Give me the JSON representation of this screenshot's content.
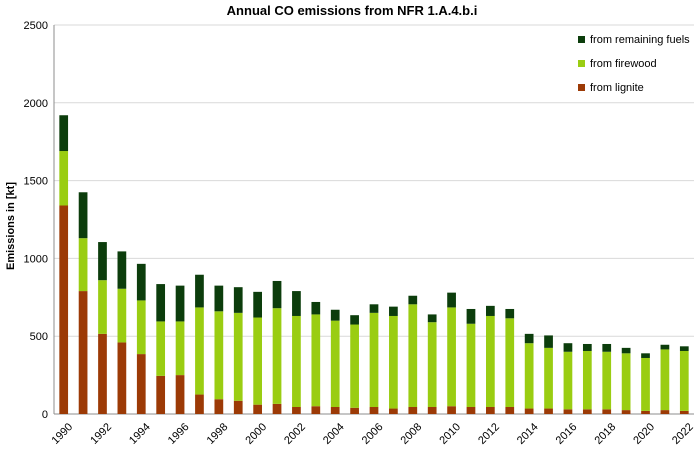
{
  "chart_data": {
    "type": "bar",
    "stacked": true,
    "title": "Annual CO emissions from NFR 1.A.4.b.i",
    "xlabel": "",
    "ylabel": "Emissions in [kt]",
    "ylim": [
      0,
      2500
    ],
    "yticks": [
      0,
      500,
      1000,
      1500,
      2000,
      2500
    ],
    "grid": true,
    "legend_position": "top-right",
    "categories": [
      "1990",
      "1991",
      "1992",
      "1993",
      "1994",
      "1995",
      "1996",
      "1997",
      "1998",
      "1999",
      "2000",
      "2001",
      "2002",
      "2003",
      "2004",
      "2005",
      "2006",
      "2007",
      "2008",
      "2009",
      "2010",
      "2011",
      "2012",
      "2013",
      "2014",
      "2015",
      "2016",
      "2017",
      "2018",
      "2019",
      "2020",
      "2021",
      "2022"
    ],
    "x_tick_labels": [
      "1990",
      "1992",
      "1994",
      "1996",
      "1998",
      "2000",
      "2002",
      "2004",
      "2006",
      "2008",
      "2010",
      "2012",
      "2014",
      "2016",
      "2018",
      "2020",
      "2022"
    ],
    "series": [
      {
        "name": "from lignite",
        "color": "#9c3a06",
        "values": [
          1340,
          790,
          515,
          460,
          385,
          245,
          250,
          125,
          95,
          85,
          60,
          65,
          45,
          50,
          45,
          40,
          45,
          35,
          45,
          45,
          50,
          45,
          45,
          45,
          35,
          35,
          30,
          30,
          30,
          25,
          20,
          25,
          20
        ]
      },
      {
        "name": "from firewood",
        "color": "#9acd12",
        "values": [
          350,
          340,
          345,
          345,
          345,
          350,
          345,
          560,
          565,
          565,
          560,
          615,
          585,
          590,
          555,
          535,
          605,
          595,
          660,
          545,
          635,
          535,
          585,
          570,
          420,
          390,
          370,
          375,
          370,
          365,
          340,
          390,
          385
        ]
      },
      {
        "name": "from remaining fuels",
        "color": "#0c3d0c",
        "values": [
          230,
          295,
          245,
          240,
          235,
          240,
          230,
          210,
          165,
          165,
          165,
          175,
          160,
          80,
          70,
          60,
          55,
          60,
          55,
          50,
          95,
          95,
          65,
          60,
          60,
          80,
          55,
          45,
          50,
          35,
          30,
          30,
          30
        ]
      }
    ]
  }
}
